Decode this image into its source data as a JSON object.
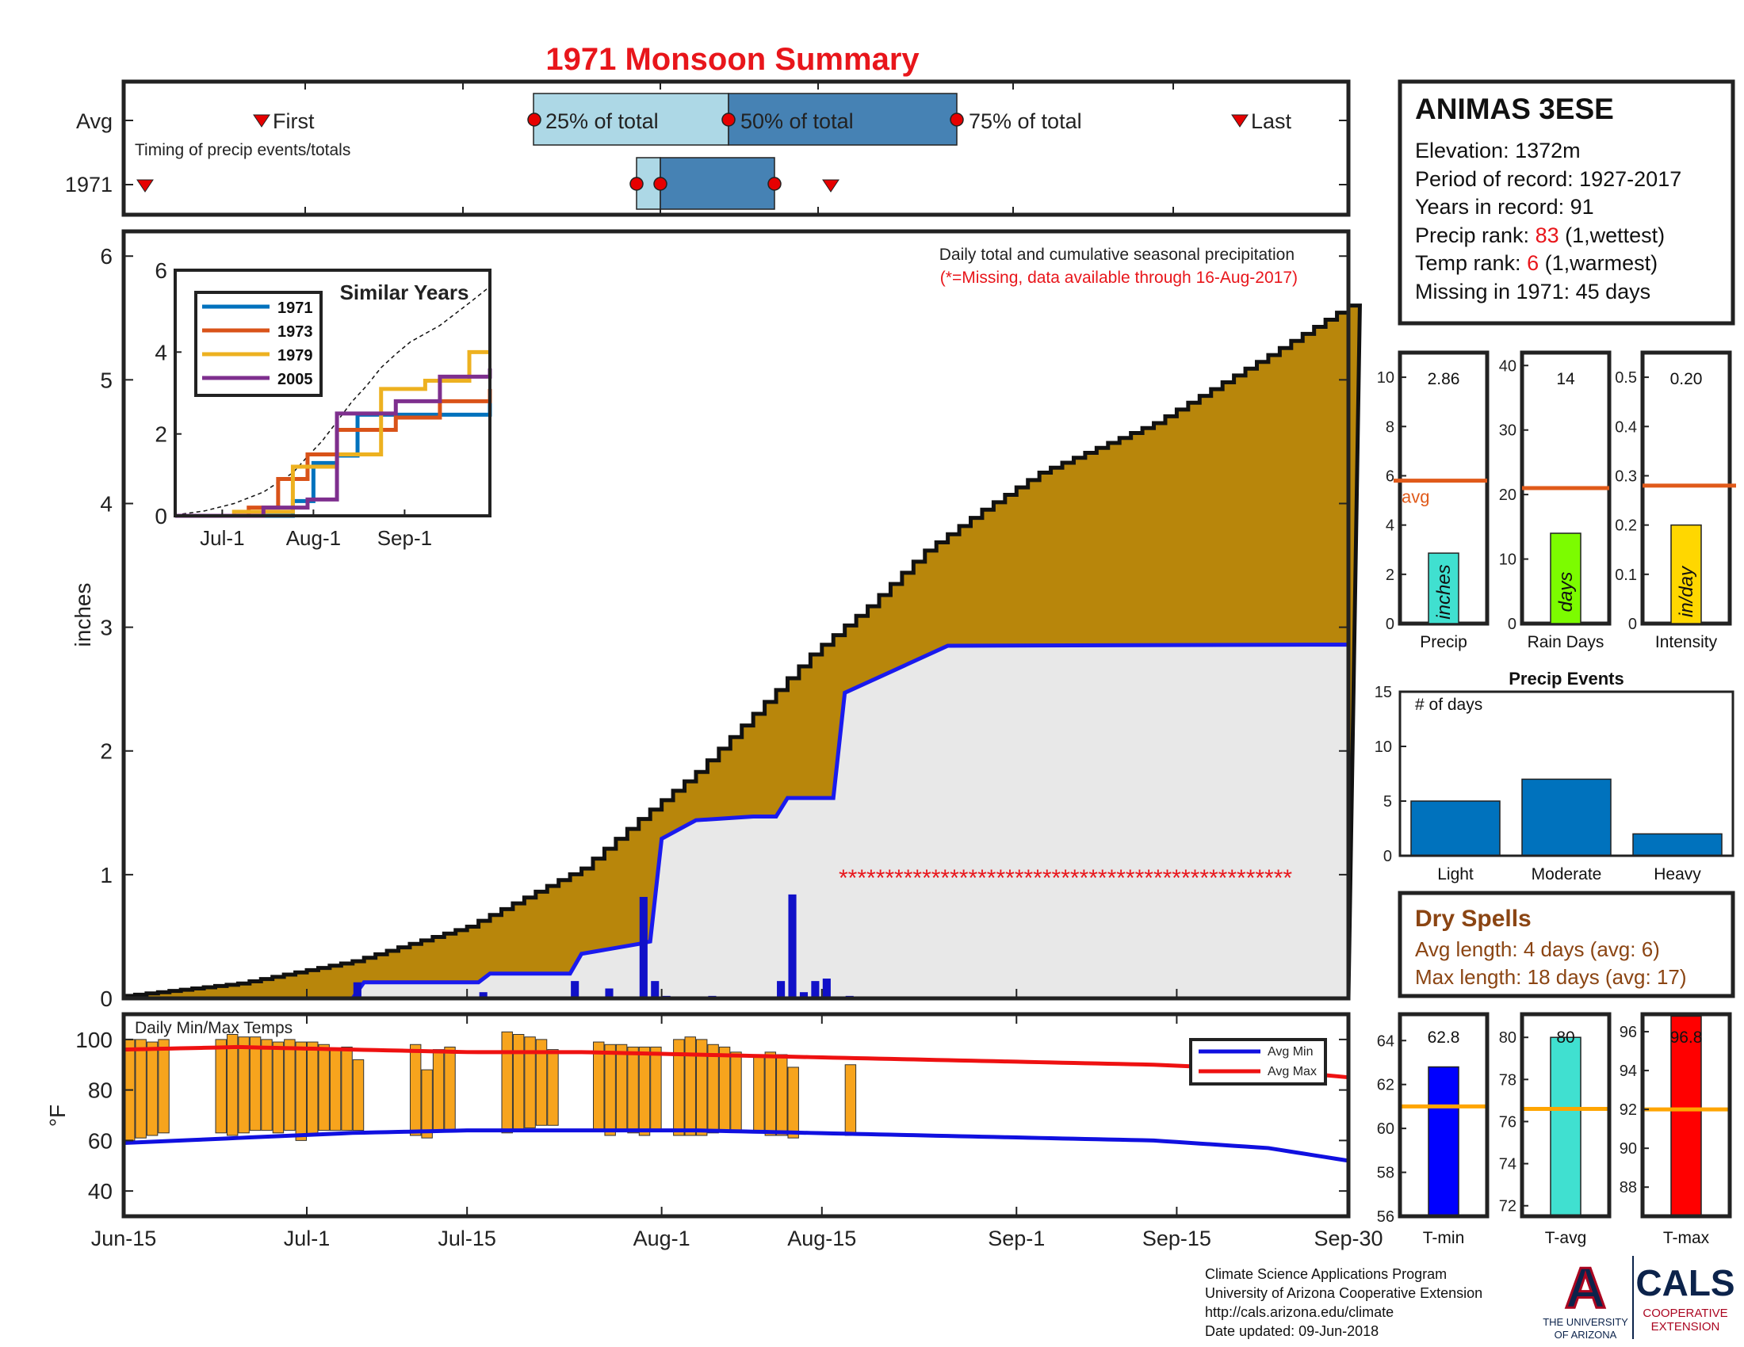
{
  "title": "1971 Monsoon Summary",
  "colors": {
    "title": "#e8161b",
    "cum_avg_fill": "#b8860b",
    "cum_1971_fill": "#e8e8e8",
    "cum_1971_line": "#1a1aee",
    "daily_bar": "#1010c8",
    "missing": "#e8161b",
    "temp_bar": "#f7a41d",
    "avg_min": "#1010e0",
    "avg_max": "#ee1111",
    "q25": "#add8e6",
    "q50": "#4682b4",
    "avg_line": "#e05a1a",
    "precip_bar": "#40e0d0",
    "raindays_bar": "#7cfc00",
    "intensity_bar": "#ffd700",
    "events_bar": "#0072bd",
    "tmin_bar": "#0000ff",
    "tavg_bar": "#40e0d0",
    "tmax_bar": "#ff0000",
    "temp_avg_line": "#ffa500",
    "dry_spells": "#8b4513",
    "sim_1971": "#0072bd",
    "sim_1973": "#d95319",
    "sim_1979": "#edb120",
    "sim_2005": "#7e2f8e"
  },
  "timing": {
    "row_avg": "Avg",
    "row_year": "1971",
    "first": "First",
    "last": "Last",
    "pct25": "25% of total",
    "pct50": "50% of total",
    "pct75": "75% of total",
    "subtitle": "Timing of precip events/totals"
  },
  "station": {
    "name": "ANIMAS 3ESE",
    "elevation": "Elevation: 1372m",
    "period": "Period of record: 1927-2017",
    "years": "Years in record: 91",
    "precip_rank_label": "Precip rank: ",
    "precip_rank": "83",
    "precip_rank_suffix": " (1,wettest)",
    "temp_rank_label": "Temp rank: ",
    "temp_rank": "6",
    "temp_rank_suffix": " (1,warmest)",
    "missing": "Missing in 1971: 45 days"
  },
  "main": {
    "ylabel": "inches",
    "note": "Daily total and cumulative seasonal precipitation",
    "missing_note": "(*=Missing, data available through 16-Aug-2017)",
    "y_ticks": [
      "0",
      "1",
      "2",
      "3",
      "4",
      "5",
      "6"
    ],
    "missing_marker": "*"
  },
  "similar": {
    "title": "Similar Years",
    "y_ticks": [
      "0",
      "2",
      "4",
      "6"
    ],
    "x_ticks": [
      "Jul-1",
      "Aug-1",
      "Sep-1"
    ],
    "legend": [
      "1971",
      "1973",
      "1979",
      "2005"
    ]
  },
  "temps": {
    "title": "Daily Min/Max Temps",
    "ylabel": "°F",
    "y_ticks": [
      "40",
      "60",
      "80",
      "100"
    ],
    "legend_min": "Avg Min",
    "legend_max": "Avg Max"
  },
  "x_ticks": [
    "Jun-15",
    "Jul-1",
    "Jul-15",
    "Aug-1",
    "Aug-15",
    "Sep-1",
    "Sep-15",
    "Sep-30"
  ],
  "stats": {
    "precip": {
      "label": "Precip",
      "value": "2.86",
      "unit": "inches",
      "avg_label": "avg",
      "ticks": [
        "0",
        "2",
        "4",
        "6",
        "8",
        "10"
      ]
    },
    "raindays": {
      "label": "Rain Days",
      "value": "14",
      "unit": "days",
      "ticks": [
        "0",
        "10",
        "20",
        "30",
        "40"
      ]
    },
    "intensity": {
      "label": "Intensity",
      "value": "0.20",
      "unit": "in/day",
      "ticks": [
        "0",
        "0.1",
        "0.2",
        "0.3",
        "0.4",
        "0.5"
      ]
    }
  },
  "events": {
    "title": "Precip Events",
    "ylabel": "# of days",
    "ticks": [
      "0",
      "5",
      "10",
      "15"
    ],
    "categories": [
      "Light",
      "Moderate",
      "Heavy"
    ]
  },
  "dry": {
    "title": "Dry Spells",
    "avg": "Avg length: 4 days (avg: 6)",
    "max": "Max length: 18 days (avg: 17)"
  },
  "tstats": {
    "tmin": {
      "label": "T-min",
      "value": "62.8",
      "ticks": [
        "56",
        "58",
        "60",
        "62",
        "64"
      ]
    },
    "tavg": {
      "label": "T-avg",
      "value": "80",
      "ticks": [
        "72",
        "74",
        "76",
        "78",
        "80"
      ]
    },
    "tmax": {
      "label": "T-max",
      "value": "96.8",
      "ticks": [
        "88",
        "90",
        "92",
        "94",
        "96"
      ]
    }
  },
  "footer": {
    "line1": "Climate Science Applications Program",
    "line2": "University of Arizona Cooperative Extension",
    "line3": "http://cals.arizona.edu/climate",
    "line4": " Date updated: 09-Jun-2018",
    "ua_logo_a": "A",
    "ua_line1": "THE UNIVERSITY",
    "ua_line2": "OF ARIZONA",
    "cals": "CALS",
    "cals_line1": "COOPERATIVE",
    "cals_line2": "EXTENSION"
  },
  "chart_data": [
    {
      "type": "area",
      "title": "Daily total and cumulative seasonal precipitation",
      "ylabel": "inches",
      "x_range": [
        "Jun-15",
        "Sep-30"
      ],
      "ylim": [
        0,
        6.2
      ],
      "series": [
        {
          "name": "Avg cumulative",
          "x_day": [
            0,
            10,
            20,
            30,
            40,
            45,
            50,
            55,
            60,
            65,
            70,
            75,
            80,
            90,
            100,
            107
          ],
          "values": [
            0.02,
            0.12,
            0.3,
            0.58,
            1.05,
            1.45,
            1.83,
            2.3,
            2.78,
            3.17,
            3.62,
            3.95,
            4.25,
            4.65,
            5.2,
            5.6
          ]
        },
        {
          "name": "1971 cumulative",
          "x_day": [
            0,
            20,
            21,
            31,
            32,
            39,
            40,
            45,
            46,
            47,
            49,
            50,
            55,
            57,
            58,
            62,
            63,
            72,
            107
          ],
          "values": [
            0.0,
            0.0,
            0.13,
            0.13,
            0.2,
            0.2,
            0.36,
            0.44,
            0.46,
            1.29,
            1.39,
            1.44,
            1.47,
            1.47,
            1.62,
            1.62,
            2.47,
            2.85,
            2.86
          ]
        },
        {
          "name": "1971 daily",
          "x_day": [
            20,
            31,
            39,
            42,
            45,
            46,
            47,
            51,
            57,
            58,
            59,
            60,
            61,
            63
          ],
          "values": [
            0.13,
            0.05,
            0.14,
            0.08,
            0.82,
            0.14,
            0.02,
            0.02,
            0.14,
            0.84,
            0.05,
            0.14,
            0.16,
            0.02
          ]
        }
      ],
      "missing_from": "Aug-16",
      "missing_marker_value": 1.0
    },
    {
      "type": "line",
      "title": "Similar Years",
      "ylim": [
        0,
        6
      ],
      "x_ticks": [
        "Jul-1",
        "Aug-1",
        "Sep-1"
      ],
      "series": [
        {
          "name": "1971",
          "x_day": [
            0,
            40,
            47,
            55,
            62,
            107
          ],
          "values": [
            0,
            0.36,
            1.29,
            1.47,
            2.47,
            2.86
          ]
        },
        {
          "name": "1973",
          "x_day": [
            0,
            25,
            35,
            45,
            55,
            75,
            90,
            107
          ],
          "values": [
            0,
            0.2,
            0.9,
            1.5,
            2.1,
            2.4,
            2.8,
            3.1
          ]
        },
        {
          "name": "1979",
          "x_day": [
            0,
            20,
            40,
            55,
            70,
            85,
            100,
            107
          ],
          "values": [
            0,
            0.1,
            1.2,
            1.5,
            3.1,
            3.3,
            4.0,
            4.0
          ]
        },
        {
          "name": "2005",
          "x_day": [
            0,
            30,
            45,
            55,
            75,
            90,
            107
          ],
          "values": [
            0,
            0.2,
            0.4,
            2.5,
            2.8,
            3.4,
            3.6
          ]
        }
      ]
    },
    {
      "type": "bar",
      "title": "Daily Min/Max Temps",
      "ylabel": "°F",
      "ylim": [
        30,
        110
      ],
      "series": [
        {
          "name": "Daily min/max",
          "x_day": [
            0,
            1,
            2,
            3,
            8,
            9,
            10,
            11,
            12,
            13,
            14,
            15,
            16,
            17,
            18,
            19,
            20,
            25,
            26,
            27,
            28,
            33,
            34,
            35,
            36,
            37,
            41,
            42,
            43,
            44,
            45,
            46,
            48,
            49,
            50,
            51,
            52,
            53,
            55,
            56,
            57,
            58,
            63
          ],
          "min": [
            60,
            61,
            62,
            63,
            63,
            62,
            63,
            64,
            64,
            63,
            64,
            60,
            62,
            64,
            64,
            64,
            64,
            62,
            61,
            64,
            64,
            63,
            64,
            65,
            66,
            66,
            64,
            62,
            64,
            63,
            62,
            64,
            62,
            62,
            62,
            63,
            64,
            64,
            63,
            62,
            62,
            61,
            62
          ],
          "max": [
            100,
            100,
            99,
            100,
            100,
            102,
            101,
            101,
            100,
            99,
            100,
            99,
            99,
            98,
            96,
            97,
            92,
            98,
            88,
            96,
            97,
            103,
            102,
            101,
            100,
            96,
            99,
            98,
            98,
            97,
            97,
            97,
            100,
            101,
            100,
            98,
            97,
            95,
            94,
            95,
            94,
            89,
            90
          ]
        },
        {
          "name": "Avg Min",
          "x_day": [
            0,
            10,
            20,
            30,
            40,
            45,
            50,
            60,
            70,
            80,
            90,
            100,
            107
          ],
          "values": [
            59,
            61,
            63,
            64,
            64,
            64,
            64,
            63,
            62,
            61,
            60,
            57,
            52
          ]
        },
        {
          "name": "Avg Max",
          "x_day": [
            0,
            10,
            20,
            30,
            40,
            50,
            60,
            70,
            80,
            90,
            100,
            107
          ],
          "values": [
            96,
            97,
            96,
            95,
            95,
            94,
            93,
            92,
            91,
            90,
            88,
            85
          ]
        }
      ]
    },
    {
      "type": "bar",
      "title": "Precip Events",
      "categories": [
        "Light",
        "Moderate",
        "Heavy"
      ],
      "values": [
        5,
        7,
        2
      ],
      "ylim": [
        0,
        15
      ]
    },
    {
      "type": "bar",
      "categories": [
        "Precip",
        "Rain Days",
        "Intensity"
      ],
      "values": [
        2.86,
        14,
        0.2
      ],
      "averages": [
        5.8,
        21,
        0.28
      ]
    },
    {
      "type": "bar",
      "categories": [
        "T-min",
        "T-avg",
        "T-max"
      ],
      "values": [
        62.8,
        80,
        96.8
      ],
      "averages": [
        61,
        76.6,
        92
      ]
    }
  ]
}
